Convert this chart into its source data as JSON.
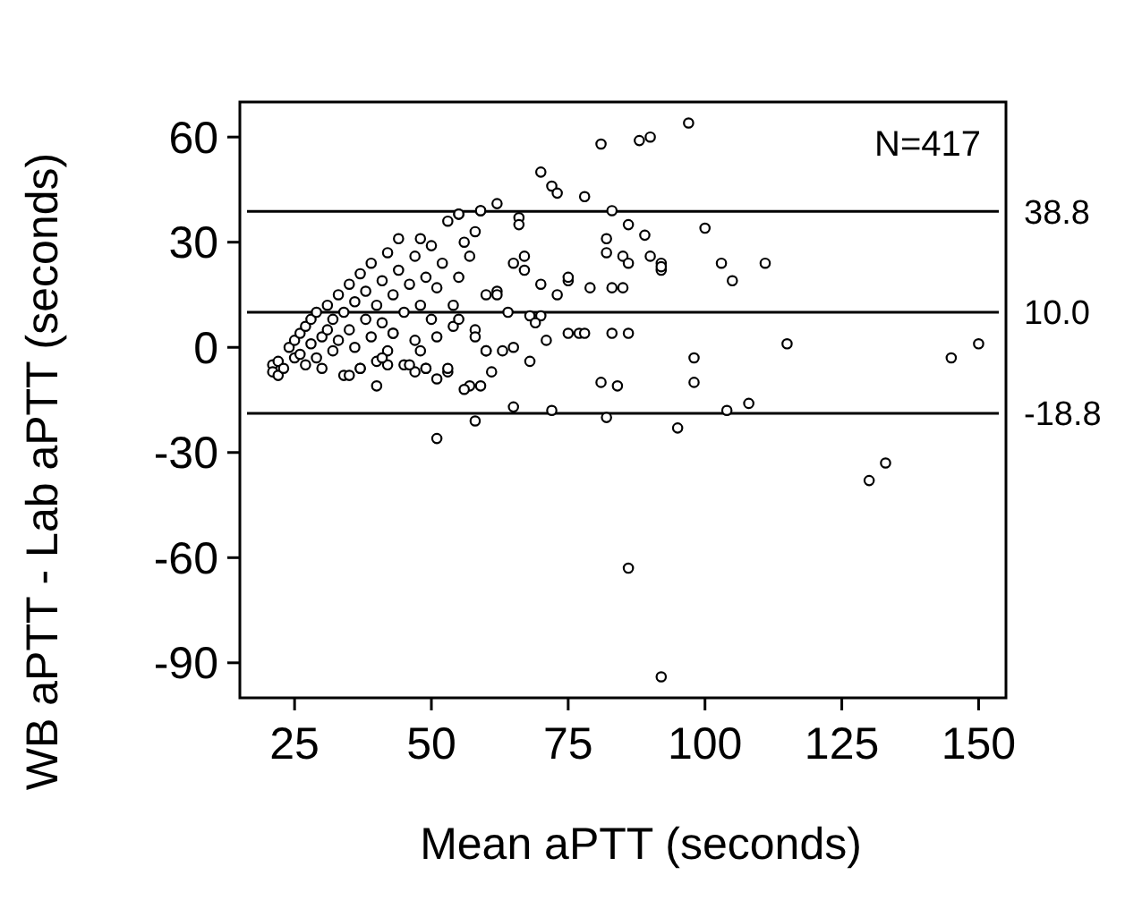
{
  "chart_data": {
    "type": "scatter",
    "xlabel": "Mean aPTT (seconds)",
    "ylabel": "WB aPTT - Lab aPTT (seconds)",
    "xlim": [
      15,
      155
    ],
    "ylim": [
      -100,
      70
    ],
    "xticks": [
      25,
      50,
      75,
      100,
      125,
      150
    ],
    "yticks": [
      -90,
      -60,
      -30,
      0,
      30,
      60
    ],
    "grid": false,
    "marker": "circle",
    "annotations": [
      "N=417"
    ],
    "ref_lines": [
      {
        "axis": "y",
        "value": 38.8,
        "label": "38.8",
        "color": "#000000"
      },
      {
        "axis": "y",
        "value": 10.0,
        "label": "10.0",
        "color": "#000000"
      },
      {
        "axis": "y",
        "value": -18.8,
        "label": "-18.8",
        "color": "#000000"
      }
    ],
    "series": [
      {
        "color": "#000000",
        "x": [
          21,
          21,
          22,
          22,
          23,
          24,
          25,
          25,
          26,
          26,
          27,
          27,
          28,
          28,
          29,
          29,
          30,
          30,
          31,
          31,
          32,
          32,
          33,
          33,
          34,
          34,
          35,
          35,
          36,
          36,
          37,
          37,
          38,
          38,
          39,
          39,
          40,
          40,
          41,
          41,
          42,
          42,
          43,
          43,
          44,
          44,
          45,
          45,
          46,
          47,
          47,
          48,
          48,
          49,
          49,
          50,
          50,
          51,
          52,
          53,
          53,
          54,
          55,
          55,
          56,
          57,
          57,
          58,
          59,
          60,
          60,
          81,
          88,
          90,
          70,
          72,
          73,
          78,
          62,
          59,
          83,
          55,
          66,
          66,
          86,
          82,
          89,
          90,
          92,
          92,
          82,
          85,
          86,
          83,
          85,
          79,
          75,
          75,
          67,
          67,
          65,
          70,
          73,
          62,
          62,
          64,
          68,
          70,
          69,
          71,
          75,
          77,
          78,
          83,
          86,
          81,
          84,
          82,
          72,
          65,
          58,
          51,
          95,
          68,
          65,
          63,
          60,
          61,
          59,
          56,
          58,
          58,
          54,
          55,
          51,
          53,
          51,
          49,
          47,
          46,
          48,
          43,
          40,
          37,
          35,
          42,
          41,
          97,
          100,
          92,
          103,
          105,
          111,
          115,
          98,
          98,
          108,
          104,
          145,
          150,
          130,
          133,
          86,
          92
        ],
        "values": [
          -5,
          -7,
          -4,
          -8,
          -6,
          0,
          2,
          -3,
          4,
          -2,
          6,
          -5,
          1,
          8,
          -3,
          10,
          3,
          -6,
          12,
          5,
          -1,
          8,
          15,
          2,
          -8,
          10,
          18,
          5,
          0,
          13,
          21,
          -6,
          8,
          16,
          3,
          24,
          12,
          -4,
          19,
          7,
          27,
          -1,
          15,
          4,
          31,
          22,
          10,
          -5,
          18,
          26,
          2,
          31,
          12,
          20,
          -6,
          29,
          8,
          17,
          24,
          36,
          -7,
          12,
          38,
          20,
          30,
          26,
          -11,
          33,
          39,
          15,
          -1,
          58,
          59,
          60,
          50,
          46,
          44,
          43,
          41,
          39,
          39,
          38,
          37,
          35,
          35,
          31,
          32,
          26,
          24,
          22,
          27,
          26,
          24,
          17,
          17,
          17,
          19,
          20,
          26,
          22,
          24,
          18,
          15,
          16,
          15,
          10,
          9,
          9,
          7,
          2,
          4,
          4,
          4,
          4,
          4,
          -10,
          -11,
          -20,
          -18,
          -17,
          -21,
          -26,
          -23,
          -4,
          0,
          -1,
          -1,
          -7,
          -11,
          -12,
          5,
          3,
          6,
          8,
          3,
          -6,
          -9,
          -6,
          -7,
          -5,
          -1,
          4,
          -11,
          -6,
          -8,
          -5,
          -3,
          64,
          34,
          23,
          24,
          19,
          24,
          1,
          -3,
          -10,
          -16,
          -18,
          -3,
          1,
          -38,
          -33,
          -63,
          -94
        ]
      }
    ]
  }
}
